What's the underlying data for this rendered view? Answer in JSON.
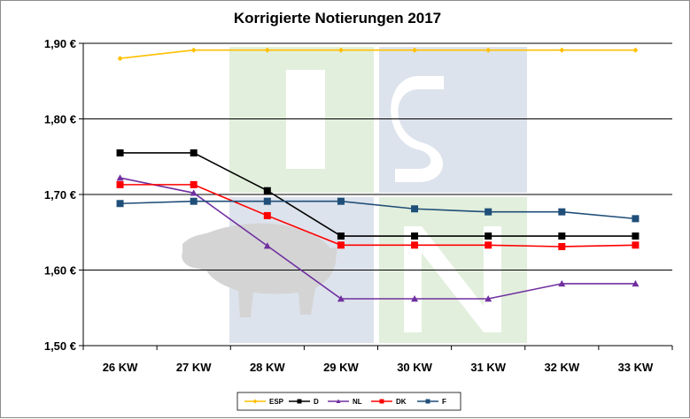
{
  "chart_data": {
    "type": "line",
    "title": "Korrigierte Notierungen 2017",
    "xlabel": "",
    "ylabel": "",
    "categories": [
      "26 KW",
      "27 KW",
      "28 KW",
      "29 KW",
      "30 KW",
      "31 KW",
      "32 KW",
      "33 KW"
    ],
    "ylim": [
      1.5,
      1.9
    ],
    "yticks": [
      1.5,
      1.6,
      1.7,
      1.8,
      1.9
    ],
    "ytick_labels": [
      "1,50 €",
      "1,60 €",
      "1,70 €",
      "1,80 €",
      "1,90 €"
    ],
    "grid": true,
    "legend_position": "bottom",
    "series": [
      {
        "name": "ESP",
        "color": "#FFC000",
        "marker": "diamond",
        "values": [
          1.88,
          1.891,
          1.891,
          1.891,
          1.891,
          1.891,
          1.891,
          1.891
        ]
      },
      {
        "name": "D",
        "color": "#000000",
        "marker": "square",
        "values": [
          1.755,
          1.755,
          1.705,
          1.645,
          1.645,
          1.645,
          1.645,
          1.645
        ]
      },
      {
        "name": "NL",
        "color": "#7030A0",
        "marker": "triangle",
        "values": [
          1.722,
          1.702,
          1.632,
          1.562,
          1.562,
          1.562,
          1.582,
          1.582
        ]
      },
      {
        "name": "DK",
        "color": "#FF0000",
        "marker": "square",
        "values": [
          1.713,
          1.713,
          1.672,
          1.633,
          1.633,
          1.633,
          1.631,
          1.633
        ]
      },
      {
        "name": "F",
        "color": "#1F4E79",
        "marker": "square",
        "values": [
          1.688,
          1.691,
          1.691,
          1.691,
          1.681,
          1.677,
          1.677,
          1.668
        ]
      }
    ]
  },
  "watermark": {
    "text": "ISN",
    "colors": {
      "green": "#e2efdc",
      "blue": "#dde3ec",
      "pig": "#d4d4d4"
    }
  }
}
